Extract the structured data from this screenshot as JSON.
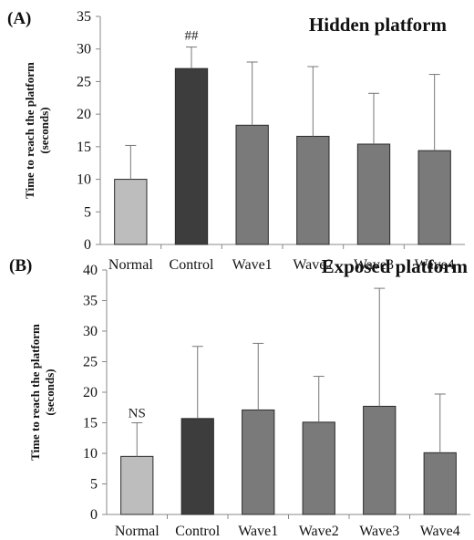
{
  "colors": {
    "Normal": "#bdbdbd",
    "Control": "#3d3d3d",
    "Wave1": "#7a7a7a",
    "Wave2": "#7a7a7a",
    "Wave3": "#7a7a7a",
    "Wave4": "#7a7a7a"
  },
  "chart_data": [
    {
      "type": "bar",
      "panel_label": "(A)",
      "title": "Hidden platform",
      "ylabel": "Time to reach the platform",
      "ylabel_unit": "(seconds)",
      "categories": [
        "Normal",
        "Control",
        "Wave1",
        "Wave2",
        "Wave3",
        "Wave4"
      ],
      "values": [
        10.0,
        27.0,
        18.3,
        16.6,
        15.4,
        14.4
      ],
      "error_upper": [
        15.2,
        30.3,
        28.0,
        27.3,
        23.2,
        26.1
      ],
      "annotations": [
        {
          "category": "Control",
          "text": "##"
        }
      ],
      "ylim": [
        0,
        35
      ],
      "yticks": [
        0,
        5,
        10,
        15,
        20,
        25,
        30,
        35
      ],
      "grid": false
    },
    {
      "type": "bar",
      "panel_label": "(B)",
      "title": "Exposed platform",
      "ylabel": "Time to reach the platform",
      "ylabel_unit": "(seconds)",
      "categories": [
        "Normal",
        "Control",
        "Wave1",
        "Wave2",
        "Wave3",
        "Wave4"
      ],
      "values": [
        9.5,
        15.7,
        17.1,
        15.1,
        17.7,
        10.1
      ],
      "error_upper": [
        15.0,
        27.5,
        28.0,
        22.6,
        37.0,
        19.7
      ],
      "annotations": [
        {
          "category": "Normal",
          "text": "NS"
        }
      ],
      "ylim": [
        0,
        40
      ],
      "yticks": [
        0,
        5,
        10,
        15,
        20,
        25,
        30,
        35,
        40
      ],
      "grid": false
    }
  ]
}
